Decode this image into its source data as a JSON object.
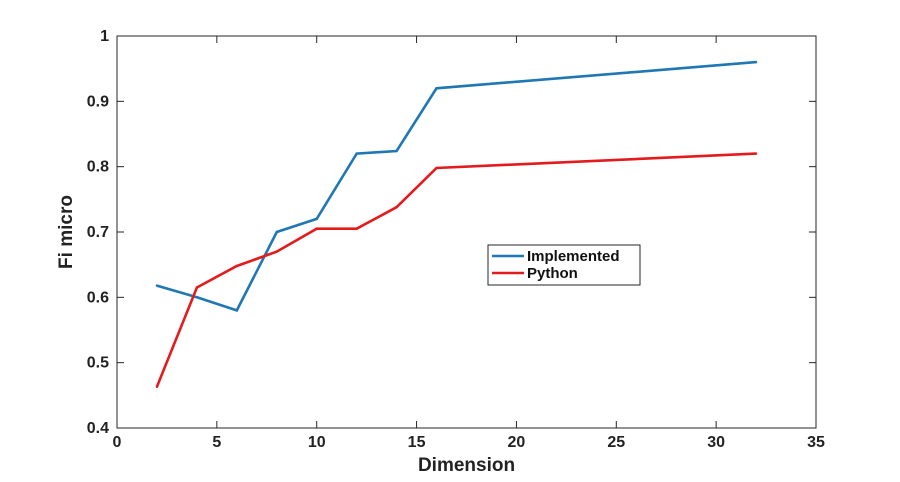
{
  "chart_data": {
    "type": "line",
    "title": "",
    "xlabel": "Dimension",
    "ylabel": "Fi micro",
    "xlim": [
      0,
      35
    ],
    "ylim": [
      0.4,
      1
    ],
    "xticks": [
      0,
      5,
      10,
      15,
      20,
      25,
      30,
      35
    ],
    "yticks": [
      0.4,
      0.5,
      0.6,
      0.7,
      0.8,
      0.9,
      1
    ],
    "xtick_labels": [
      "0",
      "5",
      "10",
      "15",
      "20",
      "25",
      "30",
      "35"
    ],
    "ytick_labels": [
      "0.4",
      "0.5",
      "0.6",
      "0.7",
      "0.8",
      "0.9",
      "1"
    ],
    "grid": false,
    "legend_position": "center-right",
    "series": [
      {
        "name": "Implemented",
        "color": "#1f77b4",
        "x": [
          2,
          4,
          6,
          8,
          10,
          12,
          14,
          16,
          32
        ],
        "y": [
          0.618,
          0.6,
          0.58,
          0.7,
          0.72,
          0.82,
          0.824,
          0.92,
          0.96
        ]
      },
      {
        "name": "Python",
        "color": "#e41a1c",
        "x": [
          2,
          4,
          6,
          8,
          10,
          12,
          14,
          16,
          32
        ],
        "y": [
          0.463,
          0.615,
          0.648,
          0.67,
          0.705,
          0.705,
          0.738,
          0.798,
          0.82
        ]
      }
    ]
  }
}
